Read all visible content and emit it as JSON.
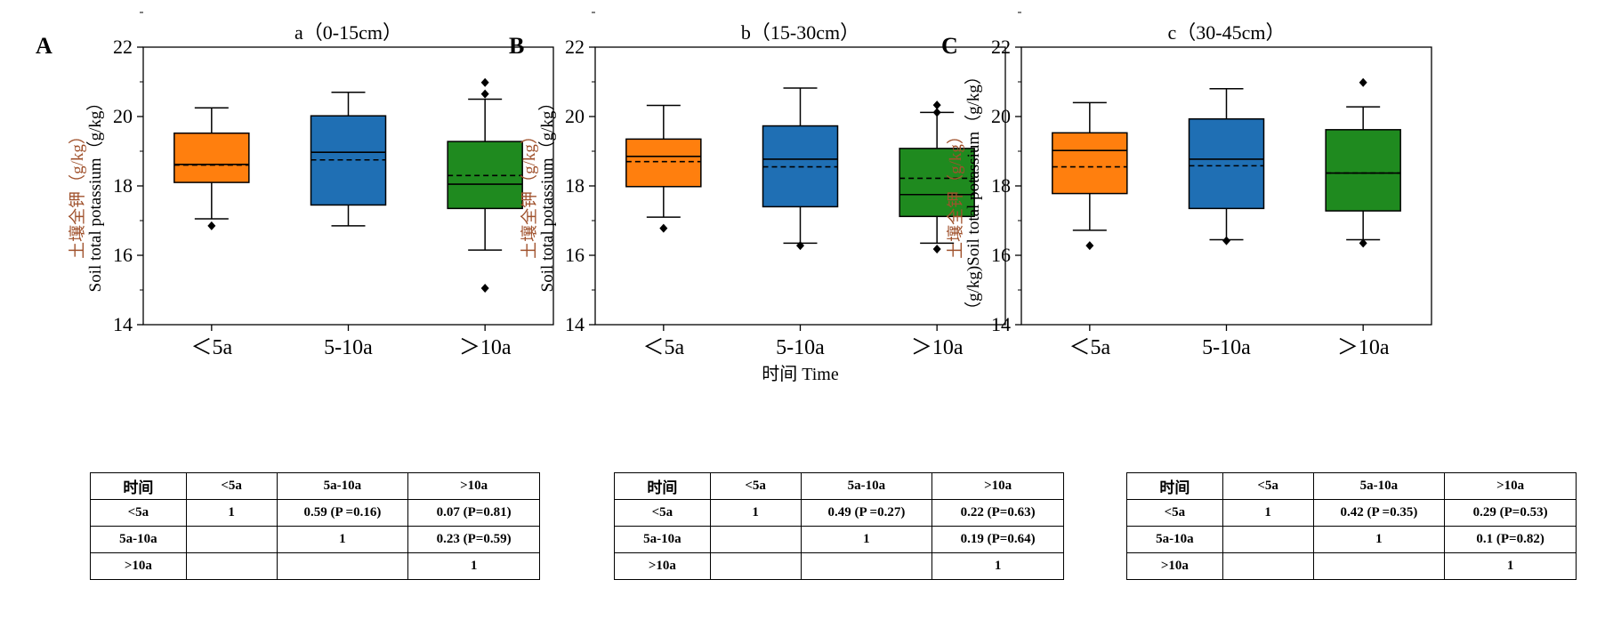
{
  "x_axis_title": "时间 Time",
  "chart_data": [
    {
      "type": "box",
      "panel": "A",
      "title": "a（0-15cm）",
      "ylabel_cn": "土壤全钾（g/kg）",
      "ylabel_en": "Soil total potassium（g/kg）",
      "ylim": [
        14,
        22
      ],
      "yticks": [
        "14",
        "16",
        "18",
        "20",
        "22"
      ],
      "categories": [
        "＜5a",
        "5-10a",
        "＞10a"
      ],
      "boxes": [
        {
          "name": "＜5a",
          "color": "#ff7f0e",
          "q1": 18.1,
          "median": 18.62,
          "mean": 18.6,
          "q3": 19.52,
          "whisker_low": 17.05,
          "whisker_high": 20.25,
          "outliers": [
            16.85
          ]
        },
        {
          "name": "5-10a",
          "color": "#1f6fb4",
          "q1": 17.45,
          "median": 18.97,
          "mean": 18.75,
          "q3": 20.02,
          "whisker_low": 16.85,
          "whisker_high": 20.7,
          "outliers": []
        },
        {
          "name": "＞10a",
          "color": "#1f8a1f",
          "q1": 17.35,
          "median": 18.05,
          "mean": 18.3,
          "q3": 19.28,
          "whisker_low": 16.15,
          "whisker_high": 20.5,
          "outliers": [
            15.05,
            20.65,
            20.98
          ]
        }
      ]
    },
    {
      "type": "box",
      "panel": "B",
      "title": "b（15-30cm）",
      "ylabel_cn": "土壤全钾（g/kg）",
      "ylabel_en": "Soil total potassium（g/kg）",
      "ylim": [
        14,
        22
      ],
      "yticks": [
        "14",
        "16",
        "18",
        "20",
        "22"
      ],
      "categories": [
        "＜5a",
        "5-10a",
        "＞10a"
      ],
      "boxes": [
        {
          "name": "＜5a",
          "color": "#ff7f0e",
          "q1": 17.98,
          "median": 18.85,
          "mean": 18.7,
          "q3": 19.35,
          "whisker_low": 17.1,
          "whisker_high": 20.32,
          "outliers": [
            16.78
          ]
        },
        {
          "name": "5-10a",
          "color": "#1f6fb4",
          "q1": 17.4,
          "median": 18.77,
          "mean": 18.55,
          "q3": 19.73,
          "whisker_low": 16.35,
          "whisker_high": 20.82,
          "outliers": [
            16.28
          ]
        },
        {
          "name": "＞10a",
          "color": "#1f8a1f",
          "q1": 17.12,
          "median": 17.75,
          "mean": 18.22,
          "q3": 19.08,
          "whisker_low": 16.35,
          "whisker_high": 20.12,
          "outliers": [
            16.18,
            20.12,
            20.33
          ]
        }
      ]
    },
    {
      "type": "box",
      "panel": "C",
      "title": "c（30-45cm）",
      "ylabel_cn": "土壤全钾（g/kg）",
      "ylabel_en": "（g/kg)Soil total potassium（g/kg）",
      "ylim": [
        14,
        22
      ],
      "yticks": [
        "14",
        "16",
        "18",
        "20",
        "22"
      ],
      "categories": [
        "＜5a",
        "5-10a",
        "＞10a"
      ],
      "boxes": [
        {
          "name": "＜5a",
          "color": "#ff7f0e",
          "q1": 17.78,
          "median": 19.02,
          "mean": 18.55,
          "q3": 19.53,
          "whisker_low": 16.72,
          "whisker_high": 20.4,
          "outliers": [
            16.28
          ]
        },
        {
          "name": "5-10a",
          "color": "#1f6fb4",
          "q1": 17.35,
          "median": 18.77,
          "mean": 18.58,
          "q3": 19.93,
          "whisker_low": 16.45,
          "whisker_high": 20.8,
          "outliers": [
            16.42
          ]
        },
        {
          "name": "＞10a",
          "color": "#1f8a1f",
          "q1": 17.28,
          "median": 18.37,
          "mean": 18.37,
          "q3": 19.62,
          "whisker_low": 16.45,
          "whisker_high": 20.28,
          "outliers": [
            16.35,
            20.98
          ]
        }
      ]
    }
  ],
  "tables": [
    {
      "header": [
        "时间",
        "<5a",
        "5a-10a",
        ">10a"
      ],
      "rows": [
        [
          "<5a",
          "1",
          "0.59 (P =0.16)",
          "0.07 (P=0.81)"
        ],
        [
          "5a-10a",
          "",
          "1",
          "0.23 (P=0.59)"
        ],
        [
          ">10a",
          "",
          "",
          "1"
        ]
      ]
    },
    {
      "header": [
        "时间",
        "<5a",
        "5a-10a",
        ">10a"
      ],
      "rows": [
        [
          "<5a",
          "1",
          "0.49 (P =0.27)",
          "0.22 (P=0.63)"
        ],
        [
          "5a-10a",
          "",
          "1",
          "0.19 (P=0.64)"
        ],
        [
          ">10a",
          "",
          "",
          "1"
        ]
      ]
    },
    {
      "header": [
        "时间",
        "<5a",
        "5a-10a",
        ">10a"
      ],
      "rows": [
        [
          "<5a",
          "1",
          "0.42 (P =0.35)",
          "0.29 (P=0.53)"
        ],
        [
          "5a-10a",
          "",
          "1",
          "0.1 (P=0.82)"
        ],
        [
          ">10a",
          "",
          "",
          "1"
        ]
      ]
    }
  ]
}
